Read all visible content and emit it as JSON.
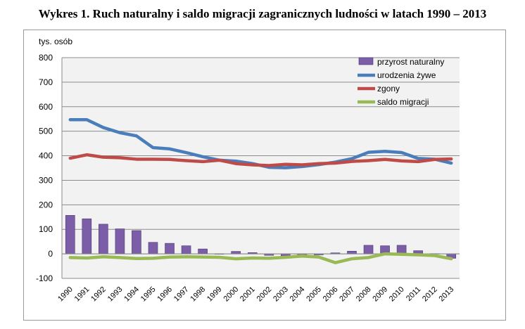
{
  "title": "Wykres 1. Ruch naturalny i saldo migracji zagranicznych ludności w latach 1990 – 2013",
  "chart_data": {
    "type": "bar+line",
    "ylabel": "tys. osób",
    "ylim": [
      -100,
      800
    ],
    "yticks": [
      -100,
      0,
      100,
      200,
      300,
      400,
      500,
      600,
      700,
      800
    ],
    "grid": true,
    "legend_position": "top-right",
    "categories": [
      "1990",
      "1991",
      "1992",
      "1993",
      "1994",
      "1995",
      "1996",
      "1997",
      "1998",
      "1999",
      "2000",
      "2001",
      "2002",
      "2003",
      "2004",
      "2005",
      "2006",
      "2007",
      "2008",
      "2009",
      "2010",
      "2011",
      "2012",
      "2013"
    ],
    "series": [
      {
        "name": "przyrost naturalny",
        "type": "bar",
        "color": "#7b5ea7",
        "values": [
          157,
          143,
          121,
          102,
          95,
          47,
          43,
          33,
          20,
          0,
          10,
          5,
          -6,
          -14,
          -7,
          -4,
          4,
          11,
          35,
          33,
          35,
          13,
          1,
          -18
        ]
      },
      {
        "name": "urodzenia żywe",
        "type": "line",
        "color": "#4a7ebb",
        "values": [
          547,
          547,
          515,
          494,
          481,
          433,
          428,
          413,
          396,
          382,
          378,
          368,
          353,
          351,
          356,
          364,
          374,
          388,
          414,
          418,
          413,
          389,
          386,
          370
        ]
      },
      {
        "name": "zgony",
        "type": "line",
        "color": "#be4b48",
        "values": [
          390,
          404,
          394,
          392,
          386,
          386,
          385,
          380,
          376,
          382,
          368,
          363,
          360,
          365,
          363,
          368,
          370,
          377,
          380,
          385,
          379,
          376,
          385,
          387
        ]
      },
      {
        "name": "saldo migracji",
        "type": "line",
        "color": "#98b954",
        "values": [
          -15,
          -17,
          -12,
          -15,
          -19,
          -18,
          -13,
          -12,
          -13,
          -14,
          -20,
          -17,
          -18,
          -14,
          -9,
          -13,
          -36,
          -20,
          -15,
          0,
          -2,
          -4,
          -7,
          -20
        ]
      }
    ]
  }
}
